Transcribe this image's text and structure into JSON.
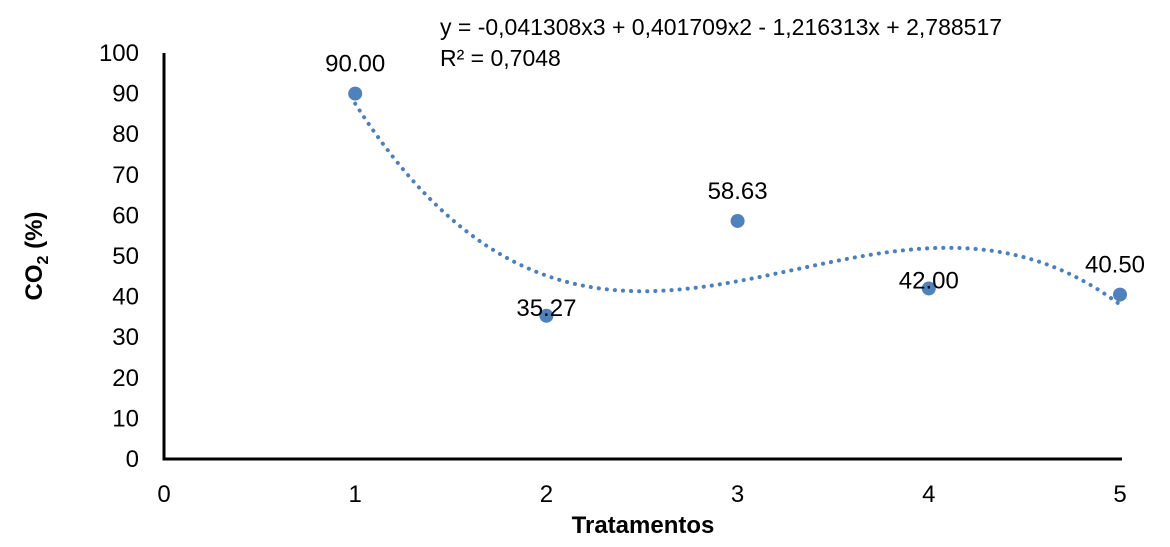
{
  "chart_data": {
    "type": "scatter",
    "xlabel": "Tratamentos",
    "ylabel_main": "CO",
    "ylabel_sub": "2",
    "ylabel_suffix": " (%)",
    "xlim": [
      0,
      5
    ],
    "ylim": [
      0,
      100
    ],
    "x_ticks": [
      0,
      1,
      2,
      3,
      4,
      5
    ],
    "y_ticks": [
      0,
      10,
      20,
      30,
      40,
      50,
      60,
      70,
      80,
      90,
      100
    ],
    "grid": false,
    "legend": "none",
    "points": [
      {
        "x": 1,
        "y": 90.0,
        "label": "90.00"
      },
      {
        "x": 2,
        "y": 35.27,
        "label": "35.27"
      },
      {
        "x": 3,
        "y": 58.63,
        "label": "58.63"
      },
      {
        "x": 4,
        "y": 42.0,
        "label": "42.00"
      },
      {
        "x": 5,
        "y": 40.5,
        "label": "40.50"
      }
    ],
    "trendline": {
      "type": "polynomial",
      "order": 3,
      "style": "dotted",
      "equation_text": "y = -0,041308x3 + 0,401709x2 - 1,216313x + 2,788517",
      "r2_text": "R² = 0,7048"
    },
    "colors": {
      "marker": "#4f81bd",
      "trendline": "#4a7fc1",
      "axis": "#000000"
    }
  }
}
